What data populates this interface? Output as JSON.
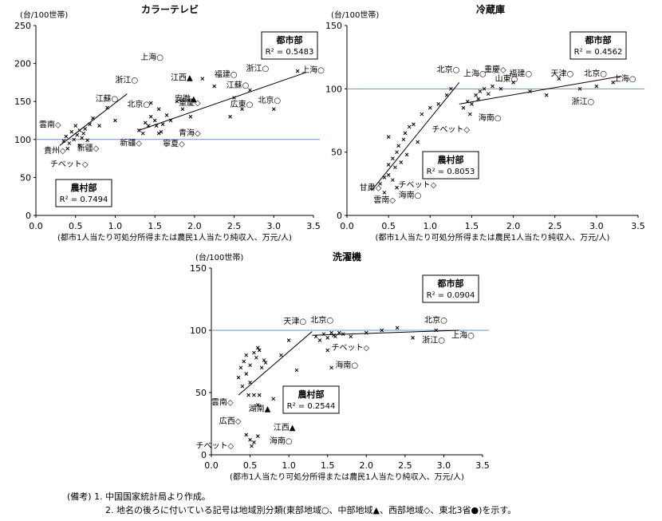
{
  "chart_data": [
    {
      "type": "scatter",
      "title": "カラーテレビ",
      "ylabel": "(台/100世帯)",
      "xlabel": "(都市1人当たり可処分所得または農民1人当たり純収入、万元/人)",
      "xlim": [
        0,
        3.5
      ],
      "ylim": [
        0,
        250
      ],
      "xticks": [
        "0.0",
        "0.5",
        "1.0",
        "1.5",
        "2.0",
        "2.5",
        "3.0",
        "3.5"
      ],
      "yticks": [
        "0",
        "50",
        "100",
        "150",
        "200",
        "250"
      ],
      "reference_y": 100,
      "regressions": [
        {
          "name": "都市部",
          "r2": "R² = 0.5483",
          "line": [
            [
              1.3,
              112
            ],
            [
              3.4,
              188
            ]
          ]
        },
        {
          "name": "農村部",
          "r2": "R² = 0.7494",
          "line": [
            [
              0.3,
              92
            ],
            [
              1.15,
              160
            ]
          ]
        }
      ],
      "points": [
        [
          0.35,
          98
        ],
        [
          0.38,
          104
        ],
        [
          0.42,
          95
        ],
        [
          0.45,
          110
        ],
        [
          0.48,
          100
        ],
        [
          0.5,
          118
        ],
        [
          0.52,
          106
        ],
        [
          0.55,
          112
        ],
        [
          0.58,
          102
        ],
        [
          0.6,
          108
        ],
        [
          0.62,
          114
        ],
        [
          0.65,
          99
        ],
        [
          0.68,
          120
        ],
        [
          0.72,
          128
        ],
        [
          0.8,
          118
        ],
        [
          0.9,
          142
        ],
        [
          1.0,
          125
        ],
        [
          0.4,
          88
        ],
        [
          0.55,
          92
        ],
        [
          1.3,
          112
        ],
        [
          1.35,
          108
        ],
        [
          1.38,
          122
        ],
        [
          1.42,
          118
        ],
        [
          1.45,
          130
        ],
        [
          1.5,
          125
        ],
        [
          1.52,
          118
        ],
        [
          1.55,
          140
        ],
        [
          1.58,
          110
        ],
        [
          1.6,
          120
        ],
        [
          1.65,
          132
        ],
        [
          1.7,
          125
        ],
        [
          1.78,
          150
        ],
        [
          1.85,
          140
        ],
        [
          1.95,
          130
        ],
        [
          2.1,
          180
        ],
        [
          2.25,
          170
        ],
        [
          2.45,
          130
        ],
        [
          2.5,
          155
        ],
        [
          2.6,
          140
        ],
        [
          2.7,
          165
        ],
        [
          3.0,
          140
        ],
        [
          3.3,
          190
        ],
        [
          1.45,
          148
        ],
        [
          1.55,
          108
        ]
      ],
      "labels": [
        {
          "text": "上海○",
          "x": 1.32,
          "y": 205
        },
        {
          "text": "江西▲",
          "x": 1.7,
          "y": 178
        },
        {
          "text": "浙江○",
          "x": 1.0,
          "y": 175
        },
        {
          "text": "安徽▲",
          "x": 1.75,
          "y": 150
        },
        {
          "text": "江蘇○",
          "x": 0.75,
          "y": 150
        },
        {
          "text": "北京○",
          "x": 1.15,
          "y": 143
        },
        {
          "text": "重慶◇",
          "x": 1.8,
          "y": 145
        },
        {
          "text": "福建○",
          "x": 2.25,
          "y": 182
        },
        {
          "text": "浙江○",
          "x": 2.65,
          "y": 190
        },
        {
          "text": "上海○",
          "x": 3.35,
          "y": 188
        },
        {
          "text": "江蘇○",
          "x": 2.4,
          "y": 168
        },
        {
          "text": "広東○",
          "x": 2.45,
          "y": 143
        },
        {
          "text": "北京○",
          "x": 2.8,
          "y": 148
        },
        {
          "text": "青海◇",
          "x": 1.8,
          "y": 105
        },
        {
          "text": "新疆◇",
          "x": 1.06,
          "y": 92
        },
        {
          "text": "寧夏◇",
          "x": 1.6,
          "y": 91
        },
        {
          "text": "雲南◇",
          "x": 0.04,
          "y": 116
        },
        {
          "text": "貴州◇",
          "x": 0.1,
          "y": 82
        },
        {
          "text": "新疆◇",
          "x": 0.52,
          "y": 85
        },
        {
          "text": "チベット◇",
          "x": 0.18,
          "y": 64
        }
      ]
    },
    {
      "type": "scatter",
      "title": "冷蔵庫",
      "ylabel": "(台/100世帯)",
      "xlabel": "(都市1人当たり可処分所得または農民1人当たり純収入、万元/人)",
      "xlim": [
        0,
        3.5
      ],
      "ylim": [
        0,
        150
      ],
      "xticks": [
        "0.0",
        "0.5",
        "1.0",
        "1.5",
        "2.0",
        "2.5",
        "3.0",
        "3.5"
      ],
      "yticks": [
        "0",
        "50",
        "100",
        "150"
      ],
      "reference_y": 100,
      "regressions": [
        {
          "name": "都市部",
          "r2": "R² = 0.4562",
          "line": [
            [
              1.35,
              88
            ],
            [
              3.3,
              110
            ]
          ]
        },
        {
          "name": "農村部",
          "r2": "R² = 0.8053",
          "line": [
            [
              0.3,
              20
            ],
            [
              1.35,
              105
            ]
          ]
        }
      ],
      "points": [
        [
          0.4,
          25
        ],
        [
          0.45,
          30
        ],
        [
          0.5,
          40
        ],
        [
          0.5,
          32
        ],
        [
          0.55,
          45
        ],
        [
          0.55,
          28
        ],
        [
          0.58,
          38
        ],
        [
          0.6,
          50
        ],
        [
          0.6,
          22
        ],
        [
          0.62,
          55
        ],
        [
          0.65,
          42
        ],
        [
          0.68,
          60
        ],
        [
          0.7,
          65
        ],
        [
          0.72,
          48
        ],
        [
          0.75,
          70
        ],
        [
          0.8,
          72
        ],
        [
          0.85,
          58
        ],
        [
          0.9,
          80
        ],
        [
          1.0,
          85
        ],
        [
          1.1,
          88
        ],
        [
          1.2,
          95
        ],
        [
          1.25,
          100
        ],
        [
          0.45,
          18
        ],
        [
          0.5,
          62
        ],
        [
          1.4,
          85
        ],
        [
          1.45,
          90
        ],
        [
          1.5,
          88
        ],
        [
          1.55,
          95
        ],
        [
          1.58,
          92
        ],
        [
          1.6,
          98
        ],
        [
          1.65,
          100
        ],
        [
          1.7,
          96
        ],
        [
          1.75,
          102
        ],
        [
          1.85,
          100
        ],
        [
          2.0,
          105
        ],
        [
          2.2,
          98
        ],
        [
          2.4,
          95
        ],
        [
          2.55,
          108
        ],
        [
          2.8,
          100
        ],
        [
          3.0,
          102
        ],
        [
          3.2,
          105
        ],
        [
          1.48,
          80
        ]
      ],
      "labels": [
        {
          "text": "北京○",
          "x": 1.08,
          "y": 113
        },
        {
          "text": "上海○",
          "x": 1.4,
          "y": 110
        },
        {
          "text": "重慶◇",
          "x": 1.65,
          "y": 113
        },
        {
          "text": "福建○",
          "x": 1.95,
          "y": 110
        },
        {
          "text": "山東○",
          "x": 1.78,
          "y": 106
        },
        {
          "text": "天津○",
          "x": 2.45,
          "y": 110
        },
        {
          "text": "北京○",
          "x": 2.85,
          "y": 110
        },
        {
          "text": "上海○",
          "x": 3.2,
          "y": 106
        },
        {
          "text": "浙江○",
          "x": 2.7,
          "y": 88
        },
        {
          "text": "海南○",
          "x": 1.58,
          "y": 75
        },
        {
          "text": "チベット◇",
          "x": 1.02,
          "y": 66
        },
        {
          "text": "甘粛◇",
          "x": 0.15,
          "y": 20
        },
        {
          "text": "チベット◇",
          "x": 0.62,
          "y": 22
        },
        {
          "text": "海南○",
          "x": 0.62,
          "y": 14
        },
        {
          "text": "雲南◇",
          "x": 0.32,
          "y": 10
        }
      ]
    },
    {
      "type": "scatter",
      "title": "洗濯機",
      "ylabel": "(台/100世帯)",
      "xlabel": "(都市1人当たり可処分所得または農民1人当たり純収入、万元/人)",
      "xlim": [
        0,
        3.5
      ],
      "ylim": [
        0,
        150
      ],
      "xticks": [
        "0.0",
        "0.5",
        "1.0",
        "1.5",
        "2.0",
        "2.5",
        "3.0",
        "3.5"
      ],
      "yticks": [
        "0",
        "50",
        "100",
        "150"
      ],
      "reference_y": 100,
      "regressions": [
        {
          "name": "都市部",
          "r2": "R² = 0.0904",
          "line": [
            [
              1.3,
              96
            ],
            [
              3.2,
              100
            ]
          ]
        },
        {
          "name": "農村部",
          "r2": "R² = 0.2544",
          "line": [
            [
              0.35,
              48
            ],
            [
              1.3,
              99
            ]
          ]
        }
      ],
      "points": [
        [
          0.35,
          62
        ],
        [
          0.38,
          70
        ],
        [
          0.4,
          55
        ],
        [
          0.42,
          75
        ],
        [
          0.45,
          65
        ],
        [
          0.45,
          80
        ],
        [
          0.48,
          48
        ],
        [
          0.5,
          72
        ],
        [
          0.5,
          58
        ],
        [
          0.55,
          82
        ],
        [
          0.58,
          78
        ],
        [
          0.6,
          86
        ],
        [
          0.62,
          84
        ],
        [
          0.65,
          70
        ],
        [
          0.68,
          76
        ],
        [
          0.7,
          74
        ],
        [
          0.55,
          48
        ],
        [
          0.62,
          48
        ],
        [
          0.6,
          40
        ],
        [
          0.8,
          45
        ],
        [
          0.9,
          80
        ],
        [
          1.0,
          92
        ],
        [
          1.1,
          68
        ],
        [
          1.35,
          95
        ],
        [
          1.4,
          92
        ],
        [
          1.45,
          97
        ],
        [
          1.5,
          94
        ],
        [
          1.55,
          98
        ],
        [
          1.58,
          96
        ],
        [
          1.6,
          95
        ],
        [
          1.65,
          98
        ],
        [
          1.7,
          97
        ],
        [
          1.8,
          95
        ],
        [
          2.0,
          98
        ],
        [
          2.2,
          100
        ],
        [
          2.4,
          102
        ],
        [
          2.6,
          94
        ],
        [
          2.9,
          100
        ],
        [
          1.55,
          70
        ],
        [
          1.5,
          84
        ],
        [
          0.45,
          16
        ],
        [
          0.5,
          12
        ],
        [
          0.55,
          10
        ],
        [
          0.6,
          15
        ],
        [
          0.52,
          7
        ]
      ],
      "labels": [
        {
          "text": "天津○",
          "x": 0.93,
          "y": 105
        },
        {
          "text": "北京○",
          "x": 1.28,
          "y": 106
        },
        {
          "text": "北京○",
          "x": 2.75,
          "y": 106
        },
        {
          "text": "浙江○",
          "x": 2.72,
          "y": 90
        },
        {
          "text": "上海○",
          "x": 3.1,
          "y": 94
        },
        {
          "text": "チベット◇",
          "x": 1.55,
          "y": 84
        },
        {
          "text": "海南○",
          "x": 1.6,
          "y": 70
        },
        {
          "text": "雲南◇",
          "x": 0.0,
          "y": 40
        },
        {
          "text": "湖南▲",
          "x": 0.48,
          "y": 35
        },
        {
          "text": "広西◇",
          "x": 0.1,
          "y": 25
        },
        {
          "text": "江西▲",
          "x": 0.8,
          "y": 20
        },
        {
          "text": "海南○",
          "x": 0.75,
          "y": 9
        },
        {
          "text": "チベット◇",
          "x": -0.2,
          "y": 5
        }
      ]
    }
  ],
  "notes": {
    "line1": "(備考) 1. 中国国家統計局より作成。",
    "line2": "2. 地名の後ろに付いている記号は地域別分類(東部地域○、中部地域▲、西部地域◇、東北3省●)を示す。"
  }
}
